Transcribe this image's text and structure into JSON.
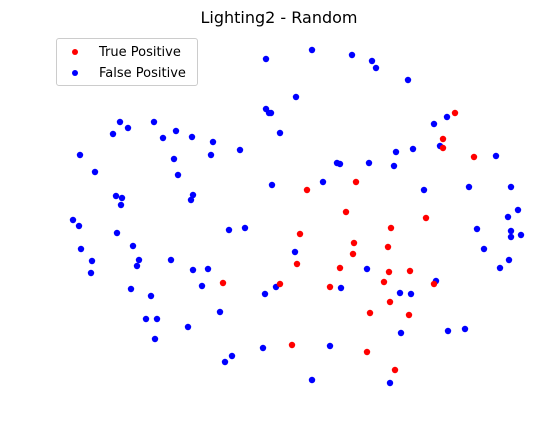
{
  "chart_data": {
    "type": "scatter",
    "title": "Lighting2 - Random",
    "xlabel": "",
    "ylabel": "",
    "axes_visible": false,
    "grid": false,
    "legend_position": "top-left",
    "series": [
      {
        "name": "True Positive",
        "color": "#ff0000",
        "points": [
          [
            455,
            113
          ],
          [
            443,
            139
          ],
          [
            443,
            148
          ],
          [
            474,
            157
          ],
          [
            356,
            182
          ],
          [
            307,
            190
          ],
          [
            346,
            212
          ],
          [
            426,
            218
          ],
          [
            391,
            228
          ],
          [
            300,
            234
          ],
          [
            354,
            243
          ],
          [
            388,
            247
          ],
          [
            353,
            254
          ],
          [
            297,
            264
          ],
          [
            340,
            268
          ],
          [
            389,
            272
          ],
          [
            410,
            271
          ],
          [
            384,
            282
          ],
          [
            223,
            283
          ],
          [
            280,
            284
          ],
          [
            330,
            287
          ],
          [
            434,
            284
          ],
          [
            390,
            302
          ],
          [
            370,
            313
          ],
          [
            409,
            315
          ],
          [
            292,
            345
          ],
          [
            367,
            352
          ],
          [
            395,
            370
          ]
        ]
      },
      {
        "name": "False Positive",
        "color": "#0000ff",
        "points": [
          [
            266,
            59
          ],
          [
            312,
            50
          ],
          [
            352,
            55
          ],
          [
            372,
            61
          ],
          [
            376,
            68
          ],
          [
            408,
            80
          ],
          [
            296,
            97
          ],
          [
            266,
            109
          ],
          [
            271,
            113
          ],
          [
            269,
            113
          ],
          [
            434,
            124
          ],
          [
            447,
            117
          ],
          [
            120,
            122
          ],
          [
            128,
            128
          ],
          [
            154,
            122
          ],
          [
            113,
            134
          ],
          [
            163,
            138
          ],
          [
            176,
            131
          ],
          [
            192,
            137
          ],
          [
            213,
            142
          ],
          [
            280,
            133
          ],
          [
            80,
            155
          ],
          [
            211,
            155
          ],
          [
            240,
            150
          ],
          [
            174,
            159
          ],
          [
            178,
            175
          ],
          [
            95,
            172
          ],
          [
            337,
            163
          ],
          [
            340,
            164
          ],
          [
            369,
            163
          ],
          [
            396,
            152
          ],
          [
            413,
            149
          ],
          [
            440,
            146
          ],
          [
            496,
            156
          ],
          [
            394,
            166
          ],
          [
            323,
            182
          ],
          [
            272,
            185
          ],
          [
            424,
            190
          ],
          [
            469,
            187
          ],
          [
            511,
            187
          ],
          [
            193,
            195
          ],
          [
            191,
            200
          ],
          [
            116,
            196
          ],
          [
            122,
            198
          ],
          [
            121,
            205
          ],
          [
            518,
            210
          ],
          [
            508,
            217
          ],
          [
            73,
            220
          ],
          [
            79,
            226
          ],
          [
            117,
            233
          ],
          [
            229,
            230
          ],
          [
            245,
            228
          ],
          [
            477,
            229
          ],
          [
            511,
            231
          ],
          [
            521,
            235
          ],
          [
            511,
            237
          ],
          [
            133,
            246
          ],
          [
            81,
            249
          ],
          [
            484,
            249
          ],
          [
            295,
            252
          ],
          [
            139,
            260
          ],
          [
            171,
            260
          ],
          [
            92,
            261
          ],
          [
            137,
            266
          ],
          [
            509,
            260
          ],
          [
            500,
            268
          ],
          [
            91,
            273
          ],
          [
            193,
            270
          ],
          [
            208,
            269
          ],
          [
            367,
            269
          ],
          [
            436,
            281
          ],
          [
            202,
            286
          ],
          [
            276,
            287
          ],
          [
            341,
            288
          ],
          [
            131,
            289
          ],
          [
            265,
            294
          ],
          [
            151,
            296
          ],
          [
            400,
            293
          ],
          [
            411,
            294
          ],
          [
            220,
            312
          ],
          [
            146,
            319
          ],
          [
            157,
            319
          ],
          [
            188,
            327
          ],
          [
            448,
            331
          ],
          [
            465,
            329
          ],
          [
            401,
            333
          ],
          [
            155,
            339
          ],
          [
            263,
            348
          ],
          [
            330,
            346
          ],
          [
            232,
            356
          ],
          [
            225,
            362
          ],
          [
            312,
            380
          ],
          [
            390,
            383
          ]
        ]
      }
    ]
  }
}
